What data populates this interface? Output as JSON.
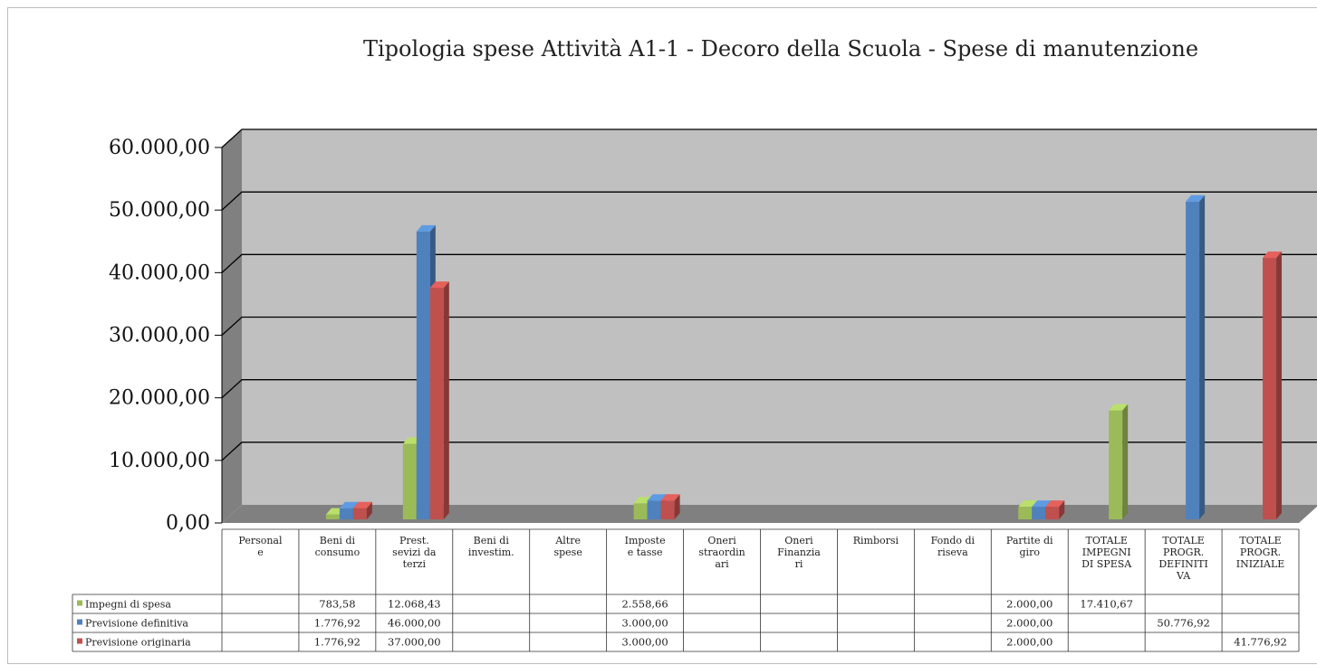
{
  "chart_data": {
    "type": "bar",
    "title": "Tipologia spese Attività A1-1  - Decoro della Scuola - Spese di manutenzione",
    "categories": [
      [
        "Personal",
        "e"
      ],
      [
        "Beni di",
        "consumo"
      ],
      [
        "Prest.",
        "sevizi da",
        "terzi"
      ],
      [
        "Beni di",
        "investim."
      ],
      [
        "Altre",
        "spese"
      ],
      [
        "Imposte",
        "e tasse"
      ],
      [
        "Oneri",
        "straordin",
        "ari"
      ],
      [
        "Oneri",
        "Finanzia",
        "ri"
      ],
      [
        "Rimborsi"
      ],
      [
        "Fondo di",
        "riseva"
      ],
      [
        "Partite di",
        "giro"
      ],
      [
        "TOTALE",
        "IMPEGNI",
        "DI SPESA"
      ],
      [
        "TOTALE",
        "PROGR.",
        "DEFINITI",
        "VA"
      ],
      [
        "TOTALE",
        "PROGR.",
        "INIZIALE"
      ]
    ],
    "series": [
      {
        "name": "Impegni di spesa",
        "color": "#9bbb59",
        "values": [
          null,
          783.58,
          12068.43,
          null,
          null,
          2558.66,
          null,
          null,
          null,
          null,
          2000.0,
          17410.67,
          null,
          null
        ],
        "labels": [
          "",
          "783,58",
          "12.068,43",
          "",
          "",
          "2.558,66",
          "",
          "",
          "",
          "",
          "2.000,00",
          "17.410,67",
          "",
          ""
        ]
      },
      {
        "name": "Previsione definitiva",
        "color": "#4f81bd",
        "values": [
          null,
          1776.92,
          46000.0,
          null,
          null,
          3000.0,
          null,
          null,
          null,
          null,
          2000.0,
          null,
          50776.92,
          null
        ],
        "labels": [
          "",
          "1.776,92",
          "46.000,00",
          "",
          "",
          "3.000,00",
          "",
          "",
          "",
          "",
          "2.000,00",
          "",
          "50.776,92",
          ""
        ]
      },
      {
        "name": "Previsione originaria",
        "color": "#c0504d",
        "values": [
          null,
          1776.92,
          37000.0,
          null,
          null,
          3000.0,
          null,
          null,
          null,
          null,
          2000.0,
          null,
          null,
          41776.92
        ],
        "labels": [
          "",
          "1.776,92",
          "37.000,00",
          "",
          "",
          "3.000,00",
          "",
          "",
          "",
          "",
          "2.000,00",
          "",
          "",
          "41.776,92"
        ]
      }
    ],
    "ylim": [
      0,
      60000
    ],
    "yticks": [
      0,
      10000,
      20000,
      30000,
      40000,
      50000,
      60000
    ],
    "ytick_labels": [
      "0,00",
      "10.000,00",
      "20.000,00",
      "30.000,00",
      "40.000,00",
      "50.000,00",
      "60.000,00"
    ],
    "grid": true,
    "legend": "data-table",
    "wall_color": "#c0c0c0",
    "floor_color": "#808080"
  }
}
